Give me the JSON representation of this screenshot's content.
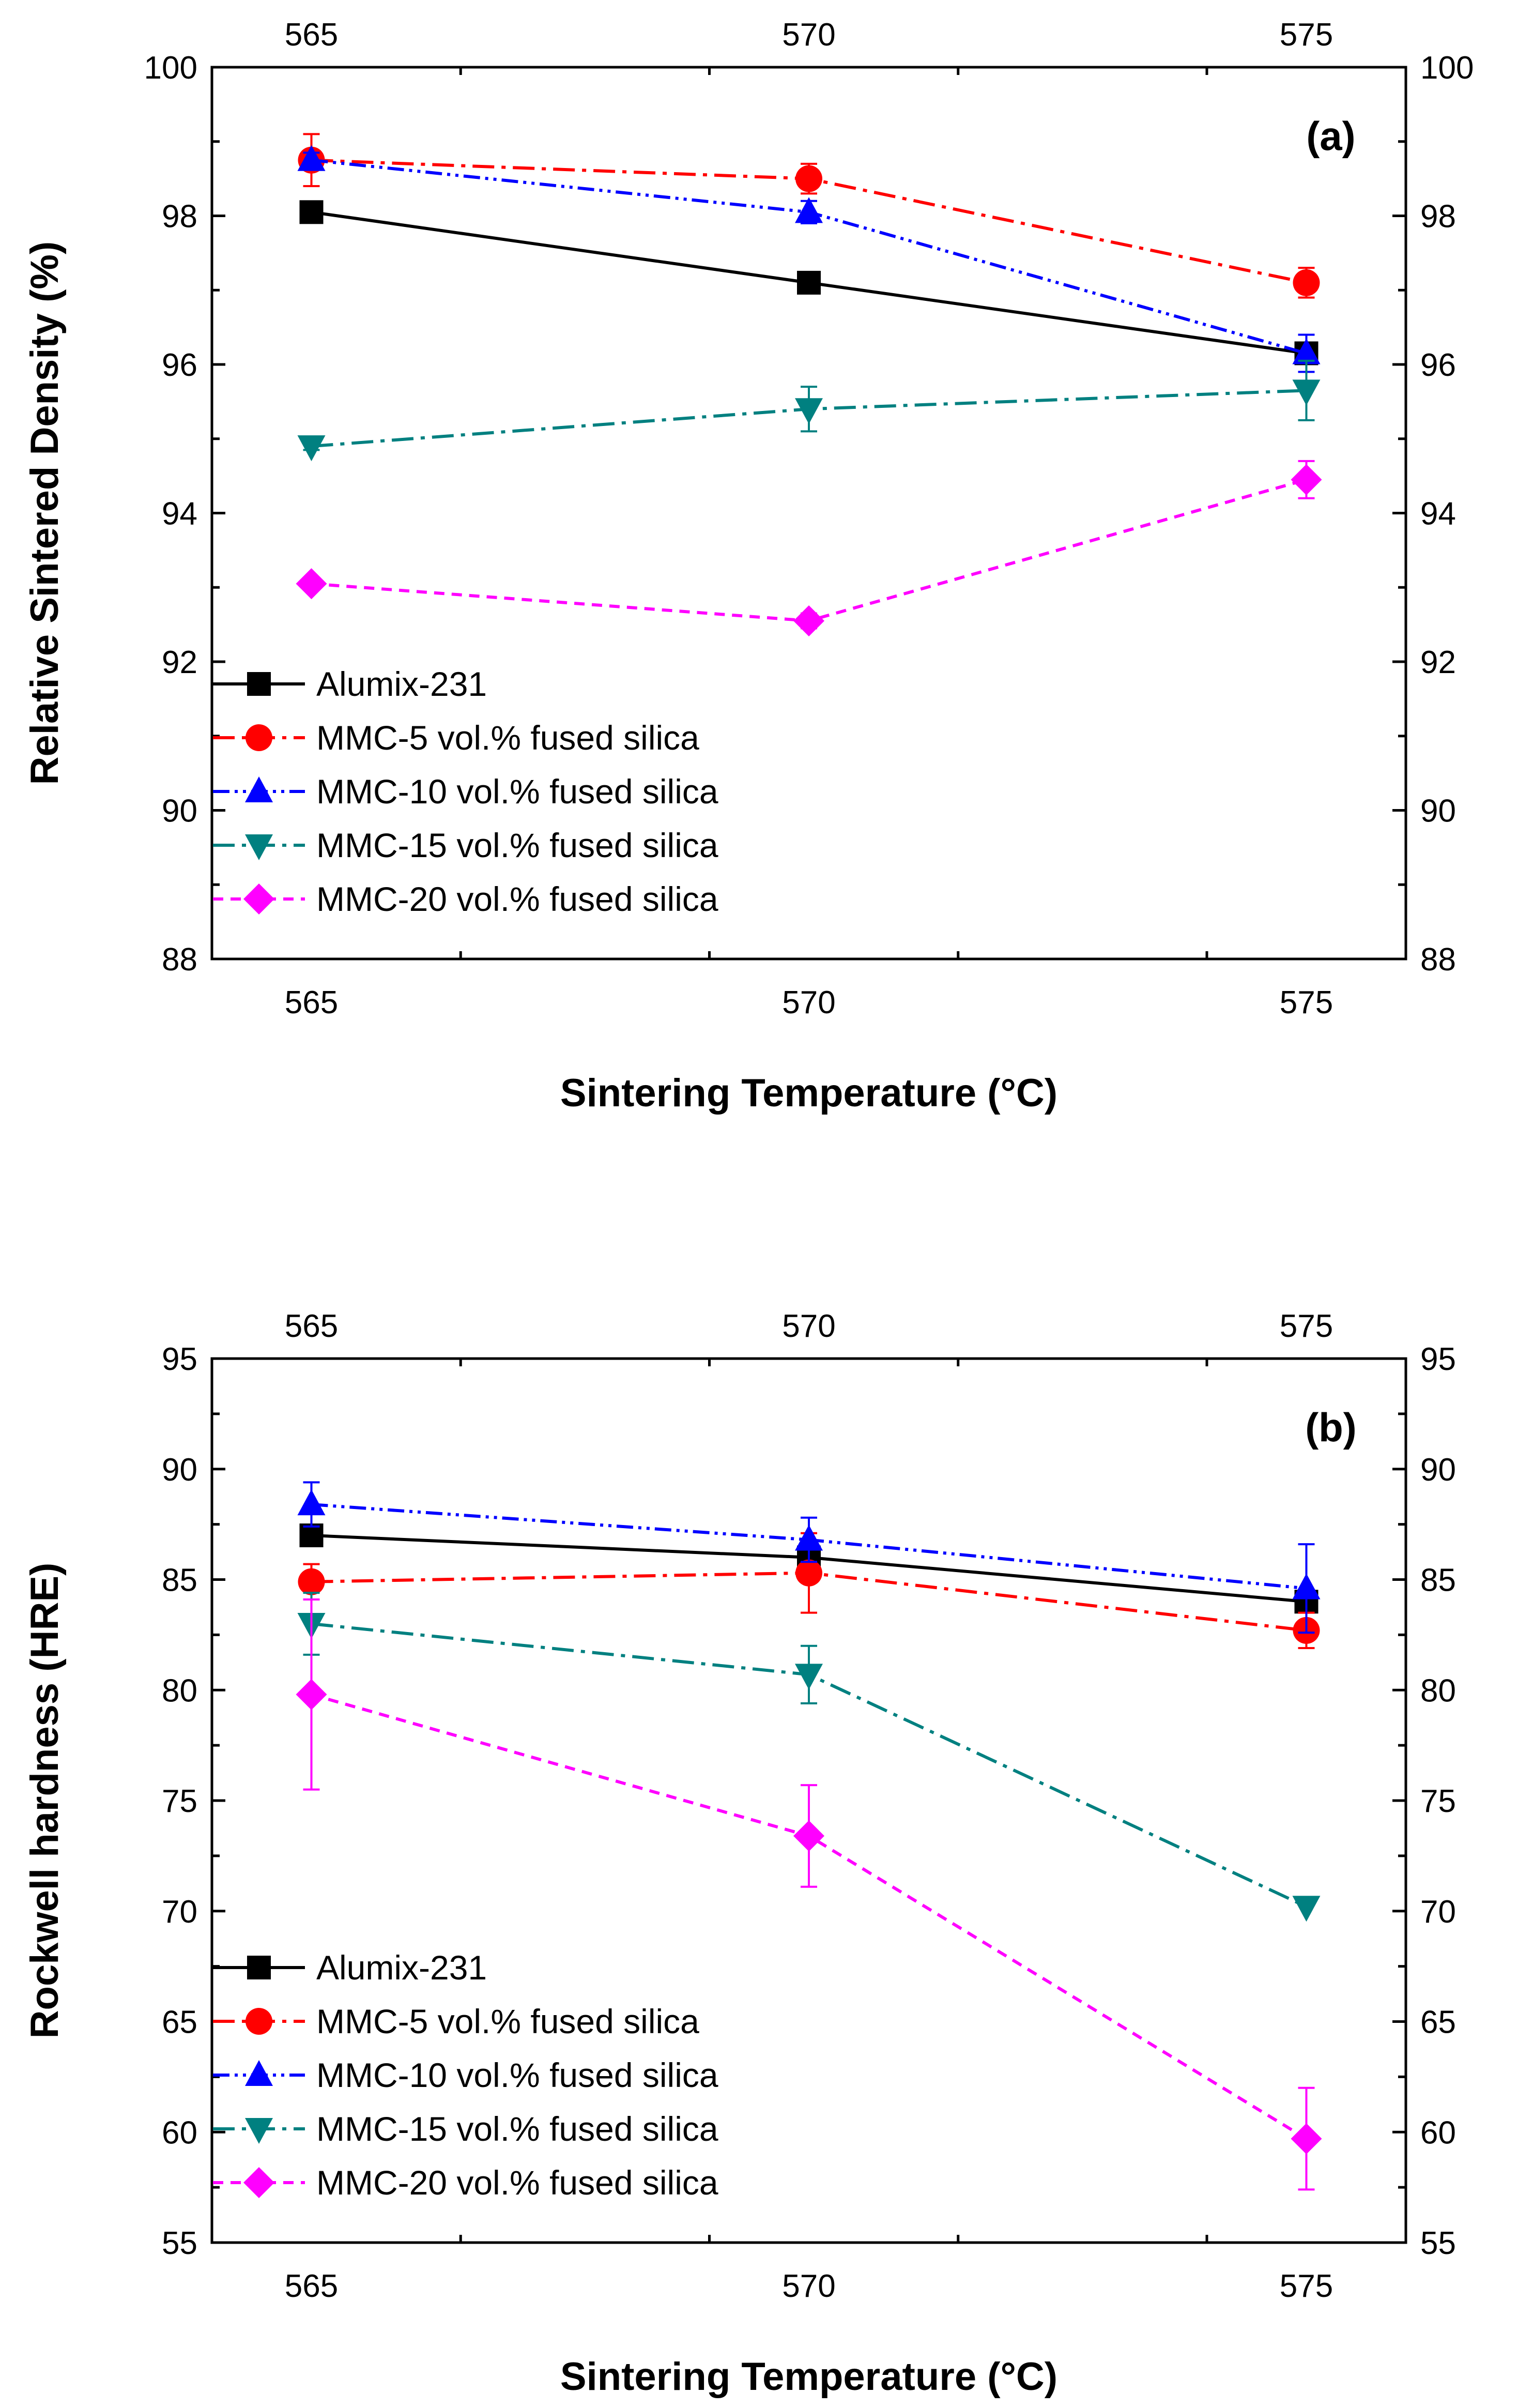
{
  "chart_data": [
    {
      "type": "line",
      "panel": "(a)",
      "xlabel": "Sintering Temperature (°C)",
      "ylabel": "Relative Sintered Density (%)",
      "x": [
        565,
        570,
        575
      ],
      "xlim": [
        564,
        576
      ],
      "ylim": [
        88,
        100
      ],
      "xticks": [
        565,
        570,
        575
      ],
      "yticks": [
        88,
        90,
        92,
        94,
        96,
        98,
        100
      ],
      "legend_position": "bottom-left",
      "series": [
        {
          "name": "Alumix-231",
          "color": "#000000",
          "dash": "solid",
          "marker": "square",
          "values": [
            98.05,
            97.1,
            96.15
          ],
          "err": [
            0,
            0,
            0
          ]
        },
        {
          "name": "MMC-5 vol.% fused silica",
          "color": "#ff0000",
          "dash": "dashdot",
          "marker": "circle",
          "values": [
            98.75,
            98.5,
            97.1
          ],
          "err": [
            0.35,
            0.2,
            0.2
          ]
        },
        {
          "name": "MMC-10 vol.% fused silica",
          "color": "#0000ff",
          "dash": "dashdotdot",
          "marker": "triangle-up",
          "values": [
            98.75,
            98.05,
            96.15
          ],
          "err": [
            0.1,
            0.15,
            0.25
          ]
        },
        {
          "name": "MMC-15 vol.% fused silica",
          "color": "#008080",
          "dash": "dashdot",
          "marker": "triangle-down",
          "values": [
            94.9,
            95.4,
            95.65
          ],
          "err": [
            0.05,
            0.3,
            0.4
          ]
        },
        {
          "name": "MMC-20 vol.% fused silica",
          "color": "#ff00ff",
          "dash": "dash",
          "marker": "diamond",
          "values": [
            93.05,
            92.55,
            94.45
          ],
          "err": [
            0,
            0.1,
            0.25
          ]
        }
      ]
    },
    {
      "type": "line",
      "panel": "(b)",
      "xlabel": "Sintering Temperature (°C)",
      "ylabel": "Rockwell hardness (HRE)",
      "x": [
        565,
        570,
        575
      ],
      "xlim": [
        564,
        576
      ],
      "ylim": [
        55,
        95
      ],
      "xticks": [
        565,
        570,
        575
      ],
      "yticks": [
        55,
        60,
        65,
        70,
        75,
        80,
        85,
        90,
        95
      ],
      "legend_position": "bottom-left",
      "series": [
        {
          "name": "Alumix-231",
          "color": "#000000",
          "dash": "solid",
          "marker": "square",
          "values": [
            87.0,
            86.0,
            84.0
          ],
          "err": [
            0,
            0,
            0
          ]
        },
        {
          "name": "MMC-5 vol.% fused silica",
          "color": "#ff0000",
          "dash": "dashdot",
          "marker": "circle",
          "values": [
            84.9,
            85.3,
            82.7
          ],
          "err": [
            0.8,
            1.8,
            0.8
          ]
        },
        {
          "name": "MMC-10 vol.% fused silica",
          "color": "#0000ff",
          "dash": "dashdotdot",
          "marker": "triangle-up",
          "values": [
            88.4,
            86.8,
            84.6
          ],
          "err": [
            1.0,
            1.0,
            2.0
          ]
        },
        {
          "name": "MMC-15 vol.% fused silica",
          "color": "#008080",
          "dash": "dashdot",
          "marker": "triangle-down",
          "values": [
            83.0,
            80.7,
            70.2
          ],
          "err": [
            1.4,
            1.3,
            0
          ]
        },
        {
          "name": "MMC-20 vol.% fused silica",
          "color": "#ff00ff",
          "dash": "dash",
          "marker": "diamond",
          "values": [
            79.8,
            73.4,
            59.7
          ],
          "err": [
            4.3,
            2.3,
            2.3
          ]
        }
      ]
    }
  ]
}
